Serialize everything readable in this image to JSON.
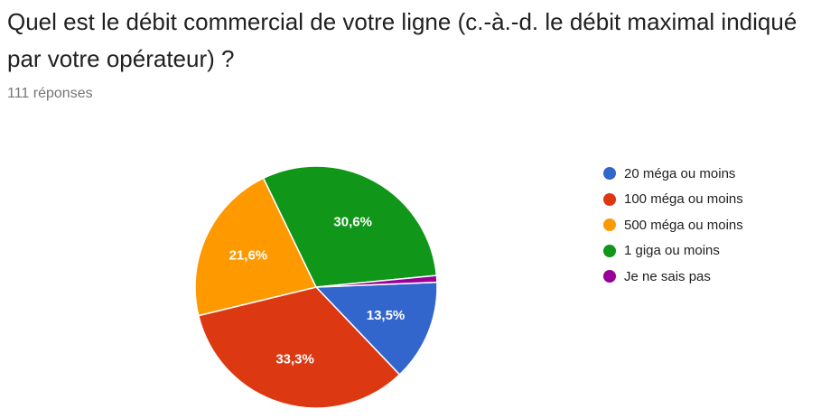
{
  "question": {
    "title": "Quel est le débit commercial de votre ligne (c.-à.-d. le débit maximal indiqué par votre opérateur) ?",
    "responses": "111 réponses"
  },
  "chart_data": {
    "type": "pie",
    "responses_total": 111,
    "slices": [
      {
        "label": "20 méga ou moins",
        "value": 13.5,
        "display": "13,5%",
        "color": "#3366cc"
      },
      {
        "label": "100 méga ou moins",
        "value": 33.3,
        "display": "33,3%",
        "color": "#dc3912"
      },
      {
        "label": "500 méga ou moins",
        "value": 21.6,
        "display": "21,6%",
        "color": "#ff9900"
      },
      {
        "label": "1 giga ou moins",
        "value": 30.6,
        "display": "30,6%",
        "color": "#109618"
      },
      {
        "label": "Je ne sais pas",
        "value": 0.9,
        "display": "",
        "color": "#990099"
      }
    ],
    "legend_position": "right"
  }
}
